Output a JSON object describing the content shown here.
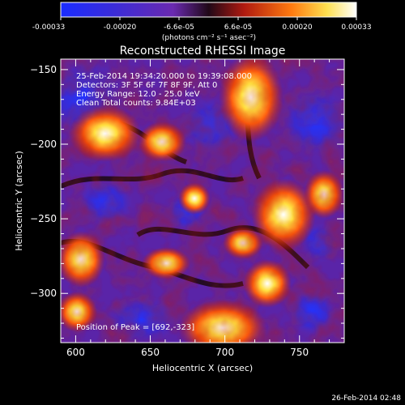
{
  "colorbar": {
    "tick_labels": [
      "-0.00033",
      "-0.00020",
      "-6.6e-05",
      "6.6e-05",
      "0.00020",
      "0.00033"
    ],
    "units_text": "(photons cm⁻² s⁻¹ asec⁻²)"
  },
  "plot": {
    "title": "Reconstructed RHESSI Image",
    "xlabel": "Heliocentric X (arcsec)",
    "ylabel": "Heliocentric Y (arcsec)",
    "xlim": [
      590,
      780
    ],
    "ylim": [
      -333,
      -143
    ],
    "x_ticks": [
      {
        "value": 600,
        "label": "600"
      },
      {
        "value": 650,
        "label": "650"
      },
      {
        "value": 700,
        "label": "700"
      },
      {
        "value": 750,
        "label": "750"
      }
    ],
    "y_ticks": [
      {
        "value": -150,
        "label": "−150"
      },
      {
        "value": -200,
        "label": "−200"
      },
      {
        "value": -250,
        "label": "−250"
      },
      {
        "value": -300,
        "label": "−300"
      }
    ]
  },
  "annotations": {
    "line1": "25-Feb-2014 19:34:20.000  to  19:39:08.000",
    "line2": "Detectors: 3F 5F 6F 7F 8F 9F, Att 0",
    "line3": "Energy Range: 12.0 - 25.0 keV",
    "line4": "Clean     Total counts: 9.84E+03",
    "peak": "Position of Peak = [692,-323]"
  },
  "timestamp": "26-Feb-2014 02:48",
  "colors": {
    "low": "#1a2cff",
    "mid_low": "#6a2ab0",
    "mid": "#2a0a2a",
    "mid_high": "#d0200a",
    "high": "#ffffff"
  }
}
